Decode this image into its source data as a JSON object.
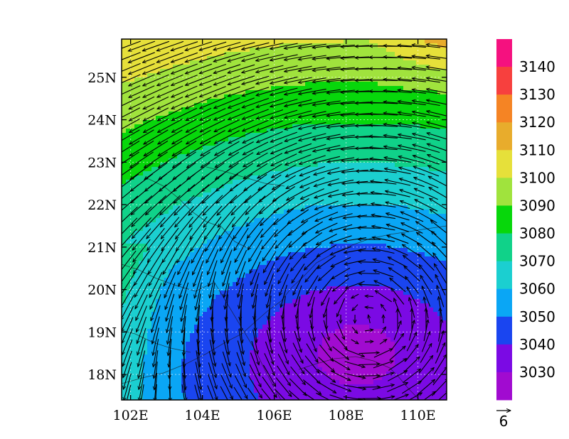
{
  "map": {
    "lon_ticks": [
      {
        "value": 102,
        "label": "102E"
      },
      {
        "value": 104,
        "label": "104E"
      },
      {
        "value": 106,
        "label": "106E"
      },
      {
        "value": 108,
        "label": "108E"
      },
      {
        "value": 110,
        "label": "110E"
      }
    ],
    "lat_ticks": [
      {
        "value": 18,
        "label": "18N"
      },
      {
        "value": 19,
        "label": "19N"
      },
      {
        "value": 20,
        "label": "20N"
      },
      {
        "value": 21,
        "label": "21N"
      },
      {
        "value": 22,
        "label": "22N"
      },
      {
        "value": 23,
        "label": "23N"
      },
      {
        "value": 24,
        "label": "24N"
      },
      {
        "value": 25,
        "label": "25N"
      }
    ],
    "lon_range": [
      101.75,
      110.8
    ],
    "lat_range": [
      17.4,
      25.9
    ],
    "field_low_center": {
      "lon": 108.3,
      "lat": 18.6
    },
    "vortex_center": {
      "lon": 108.6,
      "lat": 19.3
    }
  },
  "colorbar": {
    "levels": [
      "3140",
      "3130",
      "3120",
      "3110",
      "3100",
      "3090",
      "3080",
      "3070",
      "3060",
      "3050",
      "3040",
      "3030"
    ],
    "colors": [
      "#f5117f",
      "#f7403e",
      "#f58424",
      "#e8ac2c",
      "#e6e03a",
      "#a0e33d",
      "#07d70b",
      "#10d289",
      "#1bcfd0",
      "#0aa6f5",
      "#1a45f0",
      "#7b0ae4",
      "#a10bd0"
    ]
  },
  "vector_reference": {
    "label": "6",
    "magnitude": 6
  }
}
